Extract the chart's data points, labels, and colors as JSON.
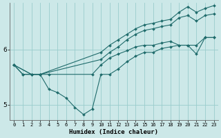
{
  "xlabel": "Humidex (Indice chaleur)",
  "bg_color": "#cce8e8",
  "line_color": "#1f6b6b",
  "grid_color": "#99cccc",
  "xlim": [
    -0.5,
    23.5
  ],
  "ylim": [
    4.72,
    6.85
  ],
  "yticks": [
    5,
    6
  ],
  "xticks": [
    0,
    1,
    2,
    3,
    4,
    5,
    6,
    7,
    8,
    9,
    10,
    11,
    12,
    13,
    14,
    15,
    16,
    17,
    18,
    19,
    20,
    21,
    22,
    23
  ],
  "lines": [
    {
      "x": [
        0,
        2,
        3,
        10,
        11,
        12,
        13,
        14,
        15,
        16,
        17,
        18,
        19,
        20,
        21,
        22,
        23
      ],
      "y": [
        5.72,
        5.55,
        5.55,
        5.95,
        6.08,
        6.18,
        6.28,
        6.38,
        6.45,
        6.48,
        6.52,
        6.55,
        6.68,
        6.78,
        6.68,
        6.75,
        6.8
      ]
    },
    {
      "x": [
        0,
        2,
        3,
        10,
        11,
        12,
        13,
        14,
        15,
        16,
        17,
        18,
        19,
        20,
        21,
        22,
        23
      ],
      "y": [
        5.72,
        5.55,
        5.55,
        5.82,
        5.95,
        6.05,
        6.18,
        6.28,
        6.35,
        6.38,
        6.42,
        6.45,
        6.58,
        6.62,
        6.52,
        6.62,
        6.65
      ]
    },
    {
      "x": [
        0,
        1,
        2,
        3,
        4,
        9,
        10,
        11,
        12,
        13,
        14,
        15,
        16,
        17,
        18,
        19,
        20,
        21,
        22,
        23
      ],
      "y": [
        5.72,
        5.55,
        5.55,
        5.55,
        5.55,
        5.55,
        5.72,
        5.85,
        5.92,
        5.98,
        6.05,
        6.08,
        6.08,
        6.12,
        6.15,
        6.08,
        6.08,
        6.08,
        6.22,
        6.22
      ]
    },
    {
      "x": [
        0,
        1,
        2,
        3,
        4,
        5,
        6,
        7,
        8,
        9,
        10,
        11,
        12,
        13,
        14,
        15,
        16,
        17,
        18,
        19,
        20,
        21,
        22,
        23
      ],
      "y": [
        5.72,
        5.55,
        5.55,
        5.55,
        5.28,
        5.22,
        5.12,
        4.95,
        4.82,
        4.92,
        5.55,
        5.55,
        5.65,
        5.78,
        5.88,
        5.95,
        5.95,
        6.02,
        6.05,
        6.08,
        6.08,
        5.92,
        6.22,
        6.22
      ]
    }
  ]
}
